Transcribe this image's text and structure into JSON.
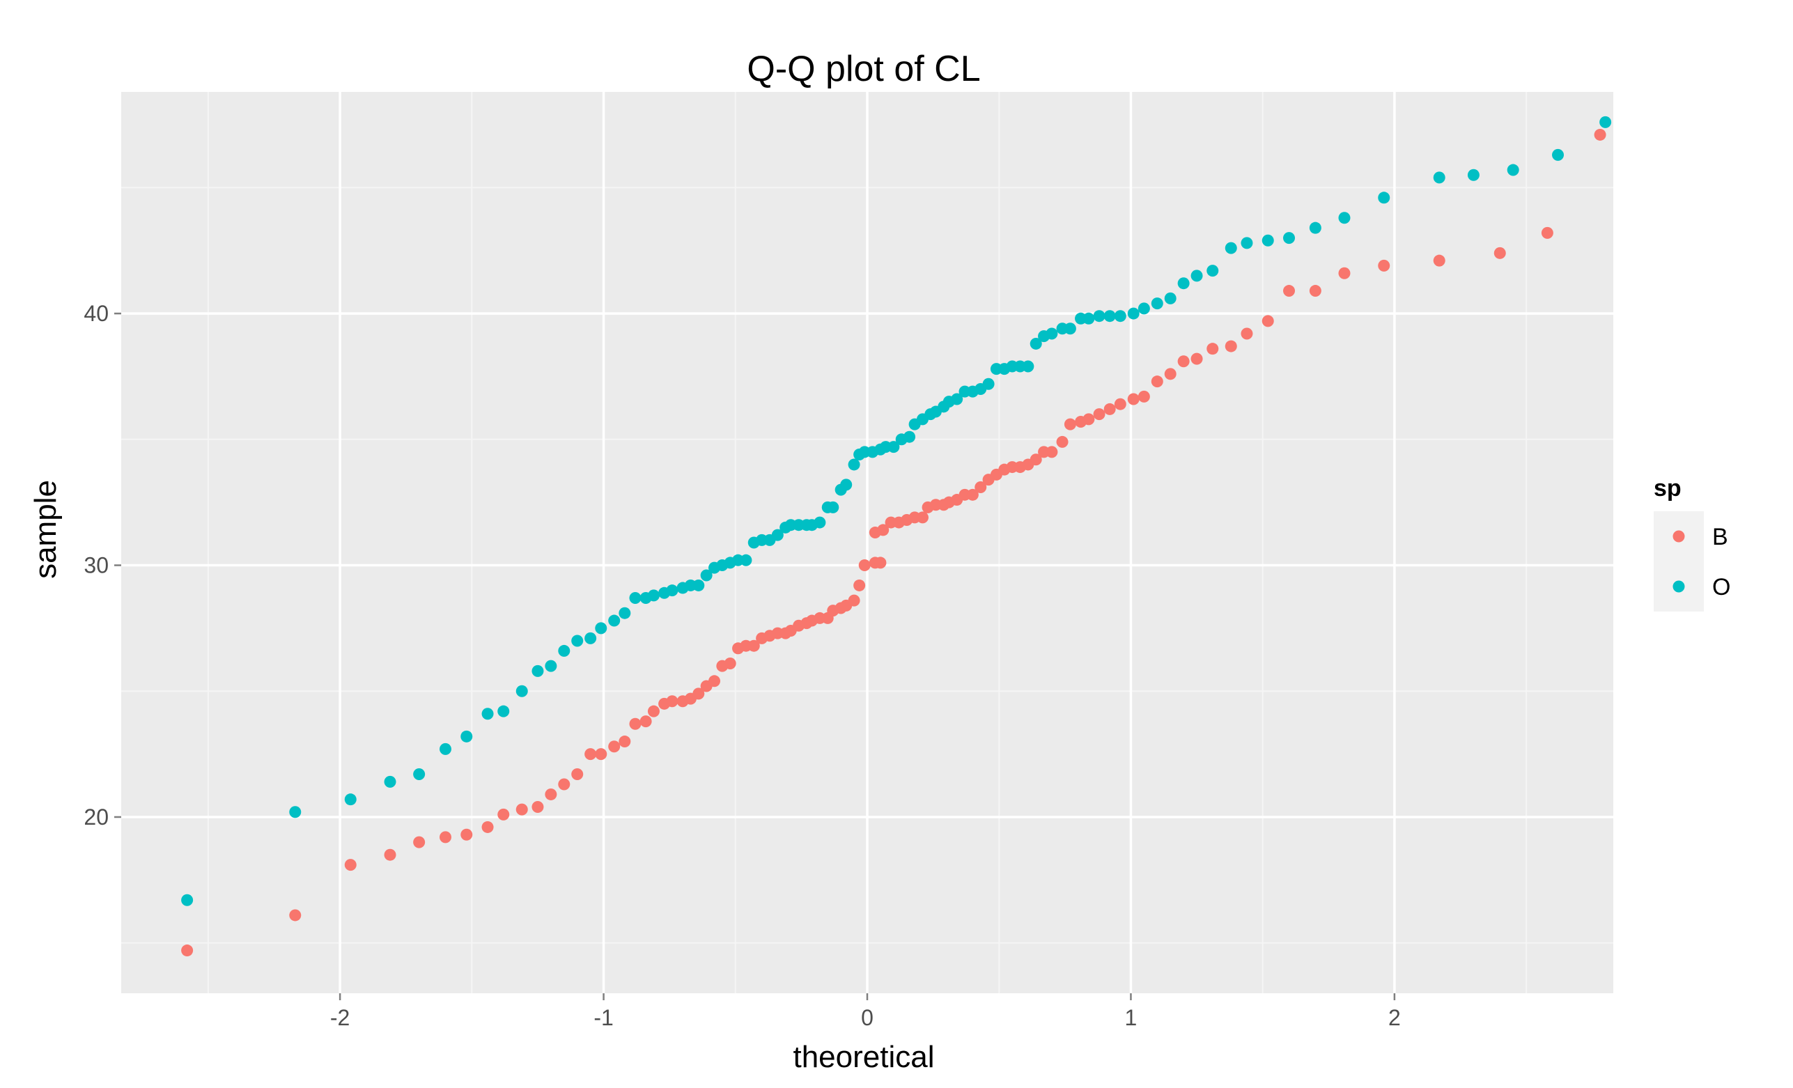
{
  "chart_data": {
    "type": "scatter",
    "title": "Q-Q plot of CL",
    "xlabel": "theoretical",
    "ylabel": "sample",
    "xlim": [
      -2.83,
      2.83
    ],
    "ylim": [
      13.0,
      48.8
    ],
    "x_ticks": [
      -2,
      -1,
      0,
      1,
      2
    ],
    "y_ticks": [
      20,
      30,
      40
    ],
    "grid": true,
    "legend": {
      "title": "sp",
      "placement": "right"
    },
    "series": [
      {
        "name": "B",
        "color": "#F8766D",
        "points": [
          [
            -2.58,
            14.7
          ],
          [
            -2.17,
            16.1
          ],
          [
            -1.96,
            18.1
          ],
          [
            -1.81,
            18.5
          ],
          [
            -1.7,
            19.0
          ],
          [
            -1.6,
            19.2
          ],
          [
            -1.52,
            19.3
          ],
          [
            -1.44,
            19.6
          ],
          [
            -1.38,
            20.1
          ],
          [
            -1.31,
            20.3
          ],
          [
            -1.25,
            20.4
          ],
          [
            -1.2,
            20.9
          ],
          [
            -1.15,
            21.3
          ],
          [
            -1.1,
            21.7
          ],
          [
            -1.05,
            22.5
          ],
          [
            -1.01,
            22.5
          ],
          [
            -0.96,
            22.8
          ],
          [
            -0.92,
            23.0
          ],
          [
            -0.88,
            23.7
          ],
          [
            -0.84,
            23.8
          ],
          [
            -0.81,
            24.2
          ],
          [
            -0.77,
            24.5
          ],
          [
            -0.74,
            24.6
          ],
          [
            -0.7,
            24.6
          ],
          [
            -0.67,
            24.7
          ],
          [
            -0.64,
            24.9
          ],
          [
            -0.61,
            25.2
          ],
          [
            -0.58,
            25.4
          ],
          [
            -0.55,
            26.0
          ],
          [
            -0.52,
            26.1
          ],
          [
            -0.49,
            26.7
          ],
          [
            -0.46,
            26.8
          ],
          [
            -0.43,
            26.8
          ],
          [
            -0.4,
            27.1
          ],
          [
            -0.37,
            27.2
          ],
          [
            -0.34,
            27.3
          ],
          [
            -0.31,
            27.3
          ],
          [
            -0.29,
            27.4
          ],
          [
            -0.26,
            27.6
          ],
          [
            -0.23,
            27.7
          ],
          [
            -0.21,
            27.8
          ],
          [
            -0.18,
            27.9
          ],
          [
            -0.15,
            27.9
          ],
          [
            -0.13,
            28.2
          ],
          [
            -0.1,
            28.3
          ],
          [
            -0.08,
            28.4
          ],
          [
            -0.05,
            28.6
          ],
          [
            -0.03,
            29.2
          ],
          [
            -0.01,
            30.0
          ],
          [
            0.03,
            30.1
          ],
          [
            0.05,
            30.1
          ],
          [
            0.03,
            31.3
          ],
          [
            0.06,
            31.4
          ],
          [
            0.09,
            31.7
          ],
          [
            0.12,
            31.7
          ],
          [
            0.15,
            31.8
          ],
          [
            0.18,
            31.9
          ],
          [
            0.21,
            31.9
          ],
          [
            0.23,
            32.3
          ],
          [
            0.26,
            32.4
          ],
          [
            0.29,
            32.4
          ],
          [
            0.31,
            32.5
          ],
          [
            0.34,
            32.6
          ],
          [
            0.37,
            32.8
          ],
          [
            0.4,
            32.8
          ],
          [
            0.43,
            33.1
          ],
          [
            0.46,
            33.4
          ],
          [
            0.49,
            33.6
          ],
          [
            0.52,
            33.8
          ],
          [
            0.55,
            33.9
          ],
          [
            0.58,
            33.9
          ],
          [
            0.61,
            34.0
          ],
          [
            0.64,
            34.2
          ],
          [
            0.67,
            34.5
          ],
          [
            0.7,
            34.5
          ],
          [
            0.74,
            34.9
          ],
          [
            0.77,
            35.6
          ],
          [
            0.81,
            35.7
          ],
          [
            0.84,
            35.8
          ],
          [
            0.88,
            36.0
          ],
          [
            0.92,
            36.2
          ],
          [
            0.96,
            36.4
          ],
          [
            1.01,
            36.6
          ],
          [
            1.05,
            36.7
          ],
          [
            1.1,
            37.3
          ],
          [
            1.15,
            37.6
          ],
          [
            1.2,
            38.1
          ],
          [
            1.25,
            38.2
          ],
          [
            1.31,
            38.6
          ],
          [
            1.38,
            38.7
          ],
          [
            1.44,
            39.2
          ],
          [
            1.52,
            39.7
          ],
          [
            1.6,
            40.9
          ],
          [
            1.7,
            40.9
          ],
          [
            1.81,
            41.6
          ],
          [
            1.96,
            41.9
          ],
          [
            2.17,
            42.1
          ],
          [
            2.4,
            42.4
          ],
          [
            2.58,
            43.2
          ],
          [
            2.78,
            47.1
          ]
        ]
      },
      {
        "name": "O",
        "color": "#00BFC4",
        "points": [
          [
            -2.58,
            16.7
          ],
          [
            -2.17,
            20.2
          ],
          [
            -1.96,
            20.7
          ],
          [
            -1.81,
            21.4
          ],
          [
            -1.7,
            21.7
          ],
          [
            -1.6,
            22.7
          ],
          [
            -1.52,
            23.2
          ],
          [
            -1.44,
            24.1
          ],
          [
            -1.38,
            24.2
          ],
          [
            -1.31,
            25.0
          ],
          [
            -1.25,
            25.8
          ],
          [
            -1.2,
            26.0
          ],
          [
            -1.15,
            26.6
          ],
          [
            -1.1,
            27.0
          ],
          [
            -1.05,
            27.1
          ],
          [
            -1.01,
            27.5
          ],
          [
            -0.96,
            27.8
          ],
          [
            -0.92,
            28.1
          ],
          [
            -0.88,
            28.7
          ],
          [
            -0.84,
            28.7
          ],
          [
            -0.81,
            28.8
          ],
          [
            -0.77,
            28.9
          ],
          [
            -0.74,
            29.0
          ],
          [
            -0.7,
            29.1
          ],
          [
            -0.67,
            29.2
          ],
          [
            -0.64,
            29.2
          ],
          [
            -0.61,
            29.6
          ],
          [
            -0.58,
            29.9
          ],
          [
            -0.55,
            30.0
          ],
          [
            -0.52,
            30.1
          ],
          [
            -0.49,
            30.2
          ],
          [
            -0.46,
            30.2
          ],
          [
            -0.43,
            30.9
          ],
          [
            -0.4,
            31.0
          ],
          [
            -0.37,
            31.0
          ],
          [
            -0.34,
            31.2
          ],
          [
            -0.31,
            31.5
          ],
          [
            -0.29,
            31.6
          ],
          [
            -0.26,
            31.6
          ],
          [
            -0.23,
            31.6
          ],
          [
            -0.21,
            31.6
          ],
          [
            -0.18,
            31.7
          ],
          [
            -0.15,
            32.3
          ],
          [
            -0.13,
            32.3
          ],
          [
            -0.1,
            33.0
          ],
          [
            -0.08,
            33.2
          ],
          [
            -0.05,
            34.0
          ],
          [
            -0.03,
            34.4
          ],
          [
            -0.01,
            34.5
          ],
          [
            0.02,
            34.5
          ],
          [
            0.05,
            34.6
          ],
          [
            0.07,
            34.7
          ],
          [
            0.1,
            34.7
          ],
          [
            0.13,
            35.0
          ],
          [
            0.16,
            35.1
          ],
          [
            0.18,
            35.6
          ],
          [
            0.21,
            35.8
          ],
          [
            0.24,
            36.0
          ],
          [
            0.26,
            36.1
          ],
          [
            0.29,
            36.3
          ],
          [
            0.31,
            36.5
          ],
          [
            0.34,
            36.6
          ],
          [
            0.37,
            36.9
          ],
          [
            0.4,
            36.9
          ],
          [
            0.43,
            37.0
          ],
          [
            0.46,
            37.2
          ],
          [
            0.49,
            37.8
          ],
          [
            0.52,
            37.8
          ],
          [
            0.55,
            37.9
          ],
          [
            0.58,
            37.9
          ],
          [
            0.61,
            37.9
          ],
          [
            0.64,
            38.8
          ],
          [
            0.67,
            39.1
          ],
          [
            0.7,
            39.2
          ],
          [
            0.74,
            39.4
          ],
          [
            0.77,
            39.4
          ],
          [
            0.81,
            39.8
          ],
          [
            0.84,
            39.8
          ],
          [
            0.88,
            39.9
          ],
          [
            0.92,
            39.9
          ],
          [
            0.96,
            39.9
          ],
          [
            1.01,
            40.0
          ],
          [
            1.05,
            40.2
          ],
          [
            1.1,
            40.4
          ],
          [
            1.15,
            40.6
          ],
          [
            1.2,
            41.2
          ],
          [
            1.25,
            41.5
          ],
          [
            1.31,
            41.7
          ],
          [
            1.38,
            42.6
          ],
          [
            1.44,
            42.8
          ],
          [
            1.52,
            42.9
          ],
          [
            1.6,
            43.0
          ],
          [
            1.7,
            43.4
          ],
          [
            1.81,
            43.8
          ],
          [
            1.96,
            44.6
          ],
          [
            2.17,
            45.4
          ],
          [
            2.3,
            45.5
          ],
          [
            2.45,
            45.7
          ],
          [
            2.62,
            46.3
          ],
          [
            2.8,
            47.6
          ]
        ]
      }
    ]
  }
}
